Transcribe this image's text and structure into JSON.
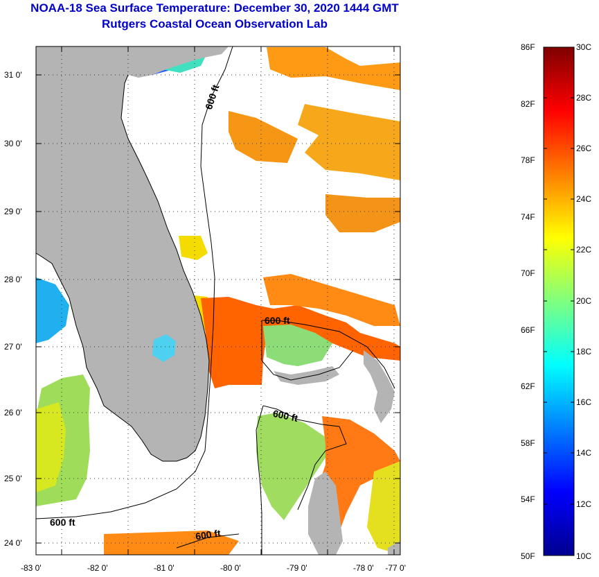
{
  "title": {
    "line1": "NOAA-18 Sea Surface Temperature:  December 30, 2020 1444 GMT",
    "line2": "Rutgers Coastal Ocean Observation Lab"
  },
  "map": {
    "lat_labels": [
      "31 0'",
      "30 0'",
      "29 0'",
      "28 0'",
      "27 0'",
      "26 0'",
      "25 0'",
      "24 0'"
    ],
    "lon_labels": [
      "-83 0'",
      "-82 0'",
      "-81 0'",
      "-80 0'",
      "-79 0'",
      "-78 0'",
      "-77 0'"
    ],
    "contour_label": "600 ft",
    "contour_labels": [
      "600 ft",
      "600 ft",
      "600 ft",
      "600 ft"
    ]
  },
  "colorbar": {
    "f_labels": [
      "86F",
      "82F",
      "78F",
      "74F",
      "70F",
      "66F",
      "62F",
      "58F",
      "54F",
      "50F"
    ],
    "c_labels": [
      "30C",
      "28C",
      "26C",
      "24C",
      "22C",
      "20C",
      "18C",
      "16C",
      "14C",
      "12C",
      "10C"
    ],
    "gradient": [
      "#00008f",
      "#0000ff",
      "#007fff",
      "#00ffff",
      "#7fff7f",
      "#ffff00",
      "#ff7f00",
      "#ff0000",
      "#7f0000"
    ]
  },
  "colors": {
    "land": "#b4b4b4",
    "title": "#0000c8",
    "shelf_water": "#f4dc00",
    "gulf_stream": "#ff6400",
    "warm_patch": "#ff9a14",
    "cool_water": "#7cd890",
    "cold_water": "#00a0ff"
  }
}
